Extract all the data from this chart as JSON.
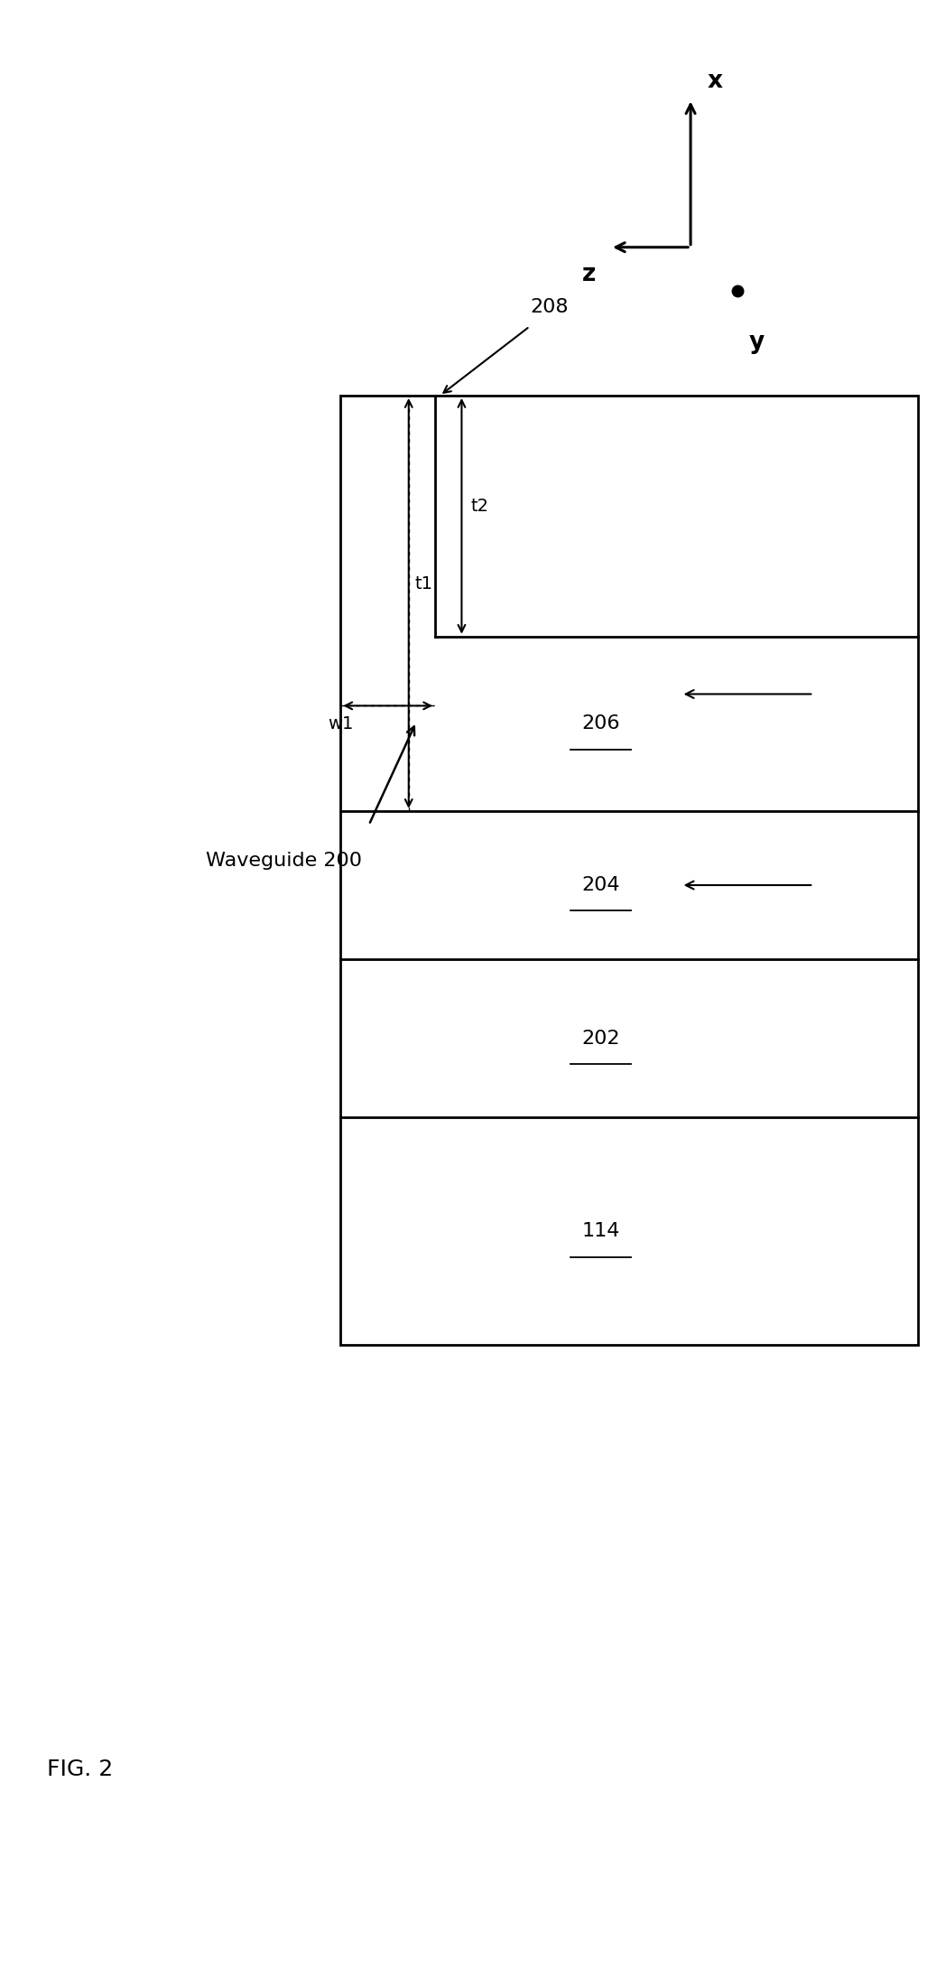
{
  "fig_width": 10.48,
  "fig_height": 21.9,
  "bg_color": "#ffffff",
  "fig_label": "FIG. 2",
  "label_208": "208",
  "waveguide_label": "Waveguide 200",
  "layer_labels": [
    "206",
    "204",
    "202",
    "114"
  ],
  "dim_labels": [
    "t2",
    "t1",
    "w1"
  ],
  "black": "#000000"
}
